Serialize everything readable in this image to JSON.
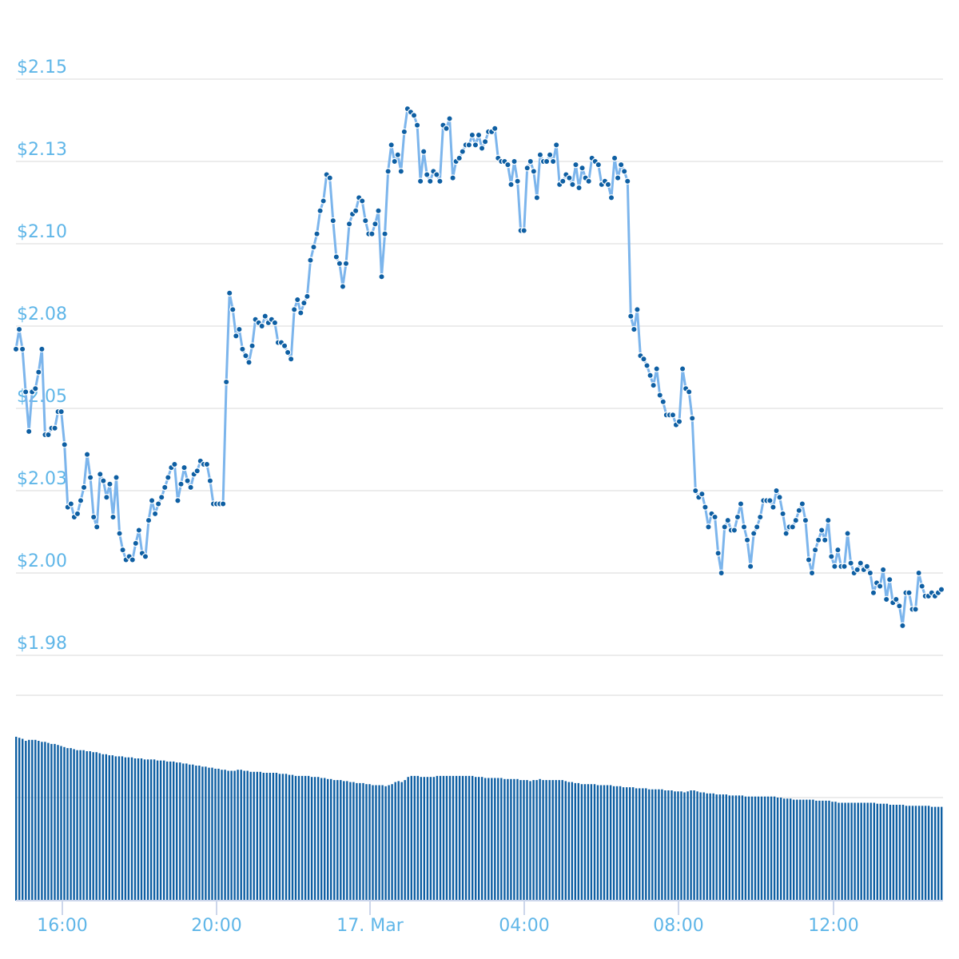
{
  "chart_data": [
    {
      "type": "line",
      "title": "",
      "xlabel": "",
      "ylabel": "",
      "x_range": [
        "16 Mar 14:48",
        "17 Mar 14:48"
      ],
      "ylim": [
        1.96,
        2.165
      ],
      "grid": true,
      "colors": {
        "line": "#7cb5ec",
        "marker": "#0e5fa3",
        "grid": "#e6e6e6",
        "label": "#5fb6e8"
      },
      "y_ticks": [
        {
          "value": 2.15,
          "label": "$2.15"
        },
        {
          "value": 2.125,
          "label": "$2.13"
        },
        {
          "value": 2.1,
          "label": "$2.10"
        },
        {
          "value": 2.075,
          "label": "$2.08"
        },
        {
          "value": 2.05,
          "label": "$2.05"
        },
        {
          "value": 2.025,
          "label": "$2.03"
        },
        {
          "value": 2.0,
          "label": "$2.00"
        },
        {
          "value": 1.975,
          "label": "$1.98"
        }
      ],
      "values": [
        2.068,
        2.074,
        2.068,
        2.055,
        2.043,
        2.055,
        2.056,
        2.061,
        2.068,
        2.042,
        2.042,
        2.044,
        2.044,
        2.049,
        2.049,
        2.039,
        2.02,
        2.021,
        2.017,
        2.018,
        2.022,
        2.026,
        2.036,
        2.029,
        2.017,
        2.014,
        2.03,
        2.028,
        2.023,
        2.027,
        2.017,
        2.029,
        2.012,
        2.007,
        2.004,
        2.005,
        2.004,
        2.009,
        2.013,
        2.006,
        2.005,
        2.016,
        2.022,
        2.018,
        2.021,
        2.023,
        2.026,
        2.029,
        2.032,
        2.033,
        2.022,
        2.027,
        2.032,
        2.028,
        2.026,
        2.03,
        2.031,
        2.034,
        2.033,
        2.033,
        2.028,
        2.021,
        2.021,
        2.021,
        2.021,
        2.058,
        2.085,
        2.08,
        2.072,
        2.074,
        2.068,
        2.066,
        2.064,
        2.069,
        2.077,
        2.076,
        2.075,
        2.078,
        2.076,
        2.077,
        2.076,
        2.07,
        2.07,
        2.069,
        2.067,
        2.065,
        2.08,
        2.083,
        2.079,
        2.082,
        2.084,
        2.095,
        2.099,
        2.103,
        2.11,
        2.113,
        2.121,
        2.12,
        2.107,
        2.096,
        2.094,
        2.087,
        2.094,
        2.106,
        2.109,
        2.11,
        2.114,
        2.113,
        2.107,
        2.103,
        2.103,
        2.106,
        2.11,
        2.09,
        2.103,
        2.122,
        2.13,
        2.125,
        2.127,
        2.122,
        2.134,
        2.141,
        2.14,
        2.139,
        2.136,
        2.119,
        2.128,
        2.121,
        2.119,
        2.122,
        2.121,
        2.119,
        2.136,
        2.135,
        2.138,
        2.12,
        2.125,
        2.126,
        2.128,
        2.13,
        2.13,
        2.133,
        2.13,
        2.133,
        2.129,
        2.131,
        2.134,
        2.134,
        2.135,
        2.126,
        2.125,
        2.125,
        2.124,
        2.118,
        2.125,
        2.119,
        2.104,
        2.104,
        2.123,
        2.125,
        2.122,
        2.114,
        2.127,
        2.125,
        2.125,
        2.127,
        2.125,
        2.13,
        2.118,
        2.119,
        2.121,
        2.12,
        2.118,
        2.124,
        2.117,
        2.123,
        2.12,
        2.119,
        2.126,
        2.125,
        2.124,
        2.118,
        2.119,
        2.118,
        2.114,
        2.126,
        2.12,
        2.124,
        2.122,
        2.119,
        2.078,
        2.074,
        2.08,
        2.066,
        2.065,
        2.063,
        2.06,
        2.057,
        2.062,
        2.054,
        2.052,
        2.048,
        2.048,
        2.048,
        2.045,
        2.046,
        2.062,
        2.056,
        2.055,
        2.047,
        2.025,
        2.023,
        2.024,
        2.02,
        2.014,
        2.018,
        2.017,
        2.006,
        2.0,
        2.014,
        2.016,
        2.013,
        2.013,
        2.017,
        2.021,
        2.014,
        2.01,
        2.002,
        2.012,
        2.014,
        2.017,
        2.022,
        2.022,
        2.022,
        2.02,
        2.025,
        2.023,
        2.018,
        2.012,
        2.014,
        2.014,
        2.016,
        2.019,
        2.021,
        2.016,
        2.004,
        2.0,
        2.007,
        2.01,
        2.013,
        2.01,
        2.016,
        2.005,
        2.002,
        2.007,
        2.002,
        2.002,
        2.012,
        2.003,
        2.0,
        2.001,
        2.003,
        2.001,
        2.002,
        2.0,
        1.994,
        1.997,
        1.996,
        2.001,
        1.992,
        1.998,
        1.991,
        1.992,
        1.99,
        1.984,
        1.994,
        1.994,
        1.989,
        1.989,
        2.0,
        1.996,
        1.993,
        1.993,
        1.994,
        1.993,
        1.994,
        1.995
      ]
    },
    {
      "type": "bar",
      "title": "",
      "xlabel": "",
      "ylabel": "",
      "x_range": [
        "16 Mar 14:48",
        "17 Mar 14:48"
      ],
      "ylim": [
        0,
        2
      ],
      "grid": true,
      "colors": {
        "bar": "#0e5fa3",
        "axis": "#ccd6eb"
      },
      "x_ticks": [
        "16:00",
        "20:00",
        "17. Mar",
        "04:00",
        "08:00",
        "12:00"
      ],
      "values": [
        1.59,
        1.58,
        1.57,
        1.55,
        1.56,
        1.56,
        1.56,
        1.55,
        1.54,
        1.54,
        1.53,
        1.52,
        1.52,
        1.51,
        1.5,
        1.49,
        1.48,
        1.48,
        1.47,
        1.46,
        1.46,
        1.46,
        1.45,
        1.45,
        1.44,
        1.44,
        1.43,
        1.42,
        1.42,
        1.41,
        1.41,
        1.4,
        1.4,
        1.4,
        1.39,
        1.39,
        1.39,
        1.38,
        1.38,
        1.38,
        1.37,
        1.37,
        1.37,
        1.37,
        1.36,
        1.36,
        1.36,
        1.35,
        1.35,
        1.35,
        1.34,
        1.34,
        1.33,
        1.33,
        1.32,
        1.32,
        1.31,
        1.31,
        1.3,
        1.3,
        1.29,
        1.29,
        1.28,
        1.28,
        1.27,
        1.27,
        1.26,
        1.26,
        1.26,
        1.27,
        1.27,
        1.26,
        1.26,
        1.25,
        1.25,
        1.25,
        1.25,
        1.24,
        1.24,
        1.24,
        1.24,
        1.24,
        1.23,
        1.23,
        1.23,
        1.22,
        1.22,
        1.21,
        1.21,
        1.21,
        1.21,
        1.21,
        1.2,
        1.2,
        1.2,
        1.19,
        1.19,
        1.18,
        1.18,
        1.17,
        1.17,
        1.17,
        1.16,
        1.16,
        1.15,
        1.15,
        1.14,
        1.14,
        1.14,
        1.13,
        1.13,
        1.12,
        1.12,
        1.12,
        1.12,
        1.11,
        1.12,
        1.13,
        1.15,
        1.16,
        1.15,
        1.17,
        1.2,
        1.21,
        1.21,
        1.21,
        1.2,
        1.2,
        1.2,
        1.2,
        1.2,
        1.21,
        1.21,
        1.21,
        1.21,
        1.21,
        1.21,
        1.21,
        1.21,
        1.21,
        1.21,
        1.21,
        1.21,
        1.2,
        1.2,
        1.2,
        1.19,
        1.19,
        1.19,
        1.19,
        1.19,
        1.19,
        1.18,
        1.18,
        1.18,
        1.18,
        1.18,
        1.17,
        1.17,
        1.17,
        1.16,
        1.17,
        1.17,
        1.18,
        1.17,
        1.17,
        1.17,
        1.17,
        1.17,
        1.17,
        1.17,
        1.16,
        1.15,
        1.15,
        1.14,
        1.14,
        1.13,
        1.13,
        1.13,
        1.13,
        1.13,
        1.12,
        1.12,
        1.12,
        1.12,
        1.12,
        1.11,
        1.11,
        1.11,
        1.1,
        1.1,
        1.1,
        1.1,
        1.09,
        1.09,
        1.09,
        1.09,
        1.08,
        1.08,
        1.08,
        1.08,
        1.08,
        1.07,
        1.07,
        1.07,
        1.06,
        1.06,
        1.06,
        1.05,
        1.06,
        1.07,
        1.07,
        1.06,
        1.05,
        1.05,
        1.04,
        1.04,
        1.04,
        1.03,
        1.03,
        1.03,
        1.03,
        1.02,
        1.02,
        1.02,
        1.02,
        1.02,
        1.01,
        1.01,
        1.01,
        1.01,
        1.01,
        1.01,
        1.01,
        1.01,
        1.01,
        1.01,
        1.0,
        1.0,
        0.99,
        0.99,
        0.99,
        0.98,
        0.98,
        0.98,
        0.98,
        0.98,
        0.98,
        0.98,
        0.97,
        0.97,
        0.97,
        0.97,
        0.97,
        0.96,
        0.96,
        0.95,
        0.95,
        0.95,
        0.95,
        0.95,
        0.95,
        0.95,
        0.95,
        0.95,
        0.95,
        0.95,
        0.95,
        0.94,
        0.94,
        0.94,
        0.94,
        0.93,
        0.93,
        0.93,
        0.93,
        0.93,
        0.92,
        0.92,
        0.92,
        0.92,
        0.92,
        0.92,
        0.92,
        0.92,
        0.91,
        0.91,
        0.91,
        0.91
      ]
    }
  ]
}
